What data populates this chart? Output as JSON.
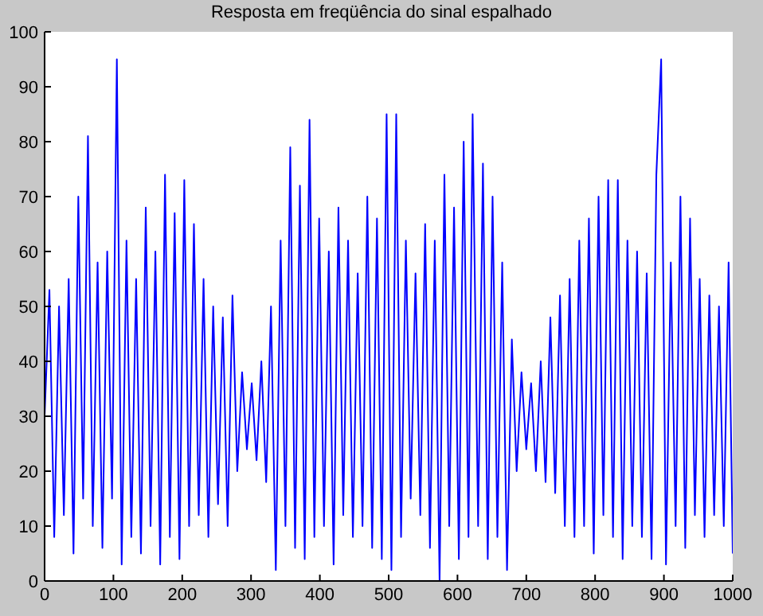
{
  "chart_data": {
    "type": "line",
    "title": "Resposta em freqüência do sinal espalhado",
    "x": [
      0,
      7,
      14,
      21,
      28,
      35,
      42,
      49,
      56,
      63,
      70,
      77,
      84,
      91,
      98,
      105,
      112,
      119,
      126,
      133,
      140,
      147,
      154,
      161,
      168,
      175,
      182,
      189,
      196,
      203,
      210,
      217,
      224,
      231,
      238,
      245,
      252,
      259,
      266,
      273,
      280,
      287,
      294,
      301,
      308,
      315,
      322,
      329,
      336,
      343,
      350,
      357,
      364,
      371,
      378,
      385,
      392,
      399,
      406,
      413,
      420,
      427,
      434,
      441,
      448,
      455,
      462,
      469,
      476,
      483,
      490,
      497,
      504,
      511,
      518,
      525,
      532,
      539,
      546,
      553,
      560,
      567,
      574,
      581,
      588,
      595,
      602,
      609,
      616,
      622,
      630,
      637,
      644,
      651,
      658,
      665,
      672,
      679,
      686,
      693,
      700,
      707,
      714,
      721,
      728,
      735,
      742,
      749,
      756,
      763,
      770,
      777,
      784,
      791,
      798,
      805,
      812,
      819,
      826,
      833,
      840,
      847,
      854,
      861,
      868,
      875,
      882,
      889,
      896,
      903,
      910,
      917,
      924,
      931,
      938,
      945,
      952,
      959,
      966,
      973,
      980,
      987,
      994,
      1000
    ],
    "series": [
      {
        "color": "#0000ff",
        "values": [
          30,
          53,
          8,
          50,
          12,
          55,
          5,
          70,
          15,
          81,
          10,
          58,
          6,
          60,
          15,
          95,
          3,
          62,
          8,
          55,
          5,
          68,
          10,
          60,
          3,
          74,
          8,
          67,
          4,
          73,
          10,
          65,
          12,
          55,
          8,
          50,
          14,
          48,
          10,
          52,
          20,
          38,
          24,
          36,
          22,
          40,
          18,
          50,
          2,
          62,
          10,
          79,
          6,
          72,
          4,
          84,
          8,
          66,
          10,
          60,
          3,
          68,
          12,
          62,
          8,
          56,
          10,
          70,
          6,
          66,
          4,
          85,
          2,
          85,
          8,
          62,
          15,
          56,
          12,
          65,
          6,
          62,
          0,
          74,
          10,
          68,
          4,
          80,
          8,
          85,
          10,
          76,
          4,
          70,
          8,
          58,
          2,
          44,
          20,
          38,
          24,
          36,
          20,
          40,
          18,
          48,
          16,
          52,
          10,
          55,
          8,
          62,
          10,
          66,
          5,
          70,
          12,
          73,
          8,
          73,
          4,
          62,
          10,
          60,
          8,
          56,
          4,
          74,
          95,
          3,
          58,
          10,
          70,
          6,
          66,
          12,
          55,
          8,
          52,
          12,
          50,
          10,
          58,
          5
        ]
      }
    ],
    "xlim": [
      0,
      1000
    ],
    "xticks": [
      0,
      100,
      200,
      300,
      400,
      500,
      600,
      700,
      800,
      900,
      1000
    ],
    "ylim": [
      0,
      100
    ],
    "yticks": [
      0,
      10,
      20,
      30,
      40,
      50,
      60,
      70,
      80,
      90,
      100
    ],
    "grid": false,
    "marker": "none",
    "line_style": "solid"
  }
}
